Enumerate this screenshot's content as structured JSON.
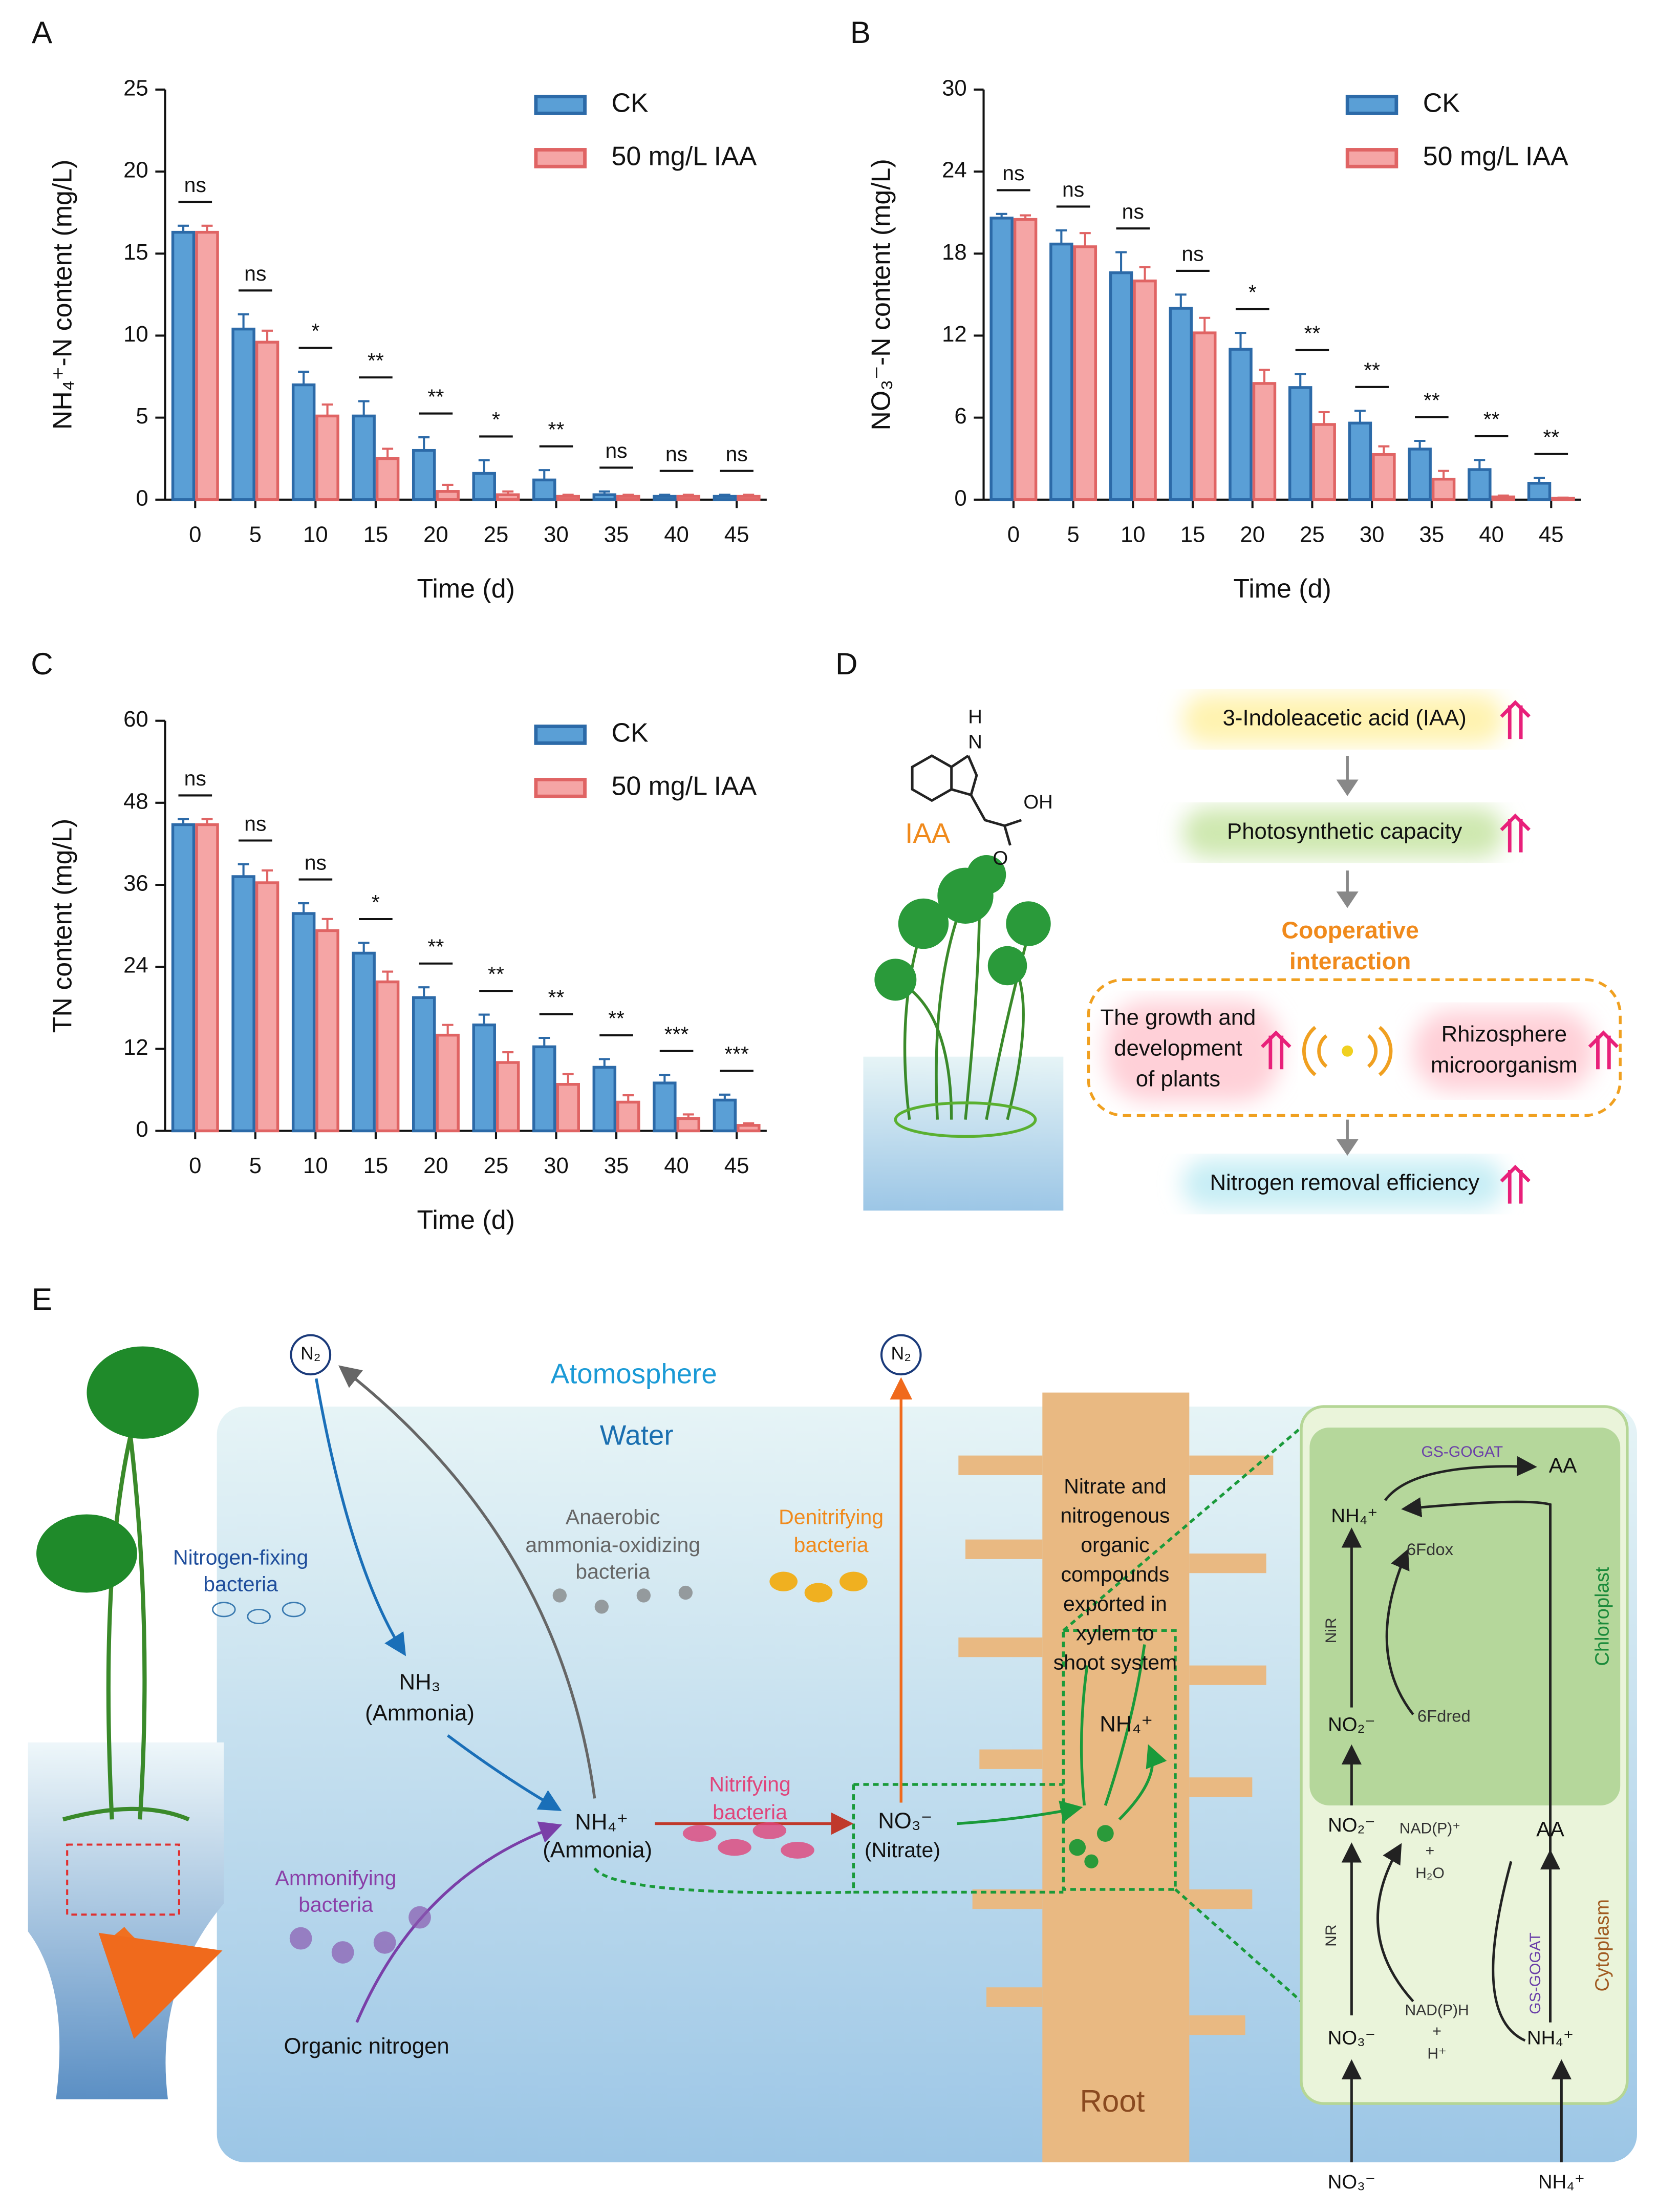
{
  "chart_data": [
    {
      "type": "bar",
      "label": "A",
      "ylabel": "NH₄⁺-N content (mg/L)",
      "xlabel": "Time (d)",
      "categories": [
        "0",
        "5",
        "10",
        "15",
        "20",
        "25",
        "30",
        "35",
        "40",
        "45"
      ],
      "series": [
        {
          "name": "CK",
          "color": "#5a9fd6",
          "edge": "#2c6aa8",
          "values": [
            16.3,
            10.4,
            7.0,
            5.1,
            3.0,
            1.6,
            1.2,
            0.3,
            0.2,
            0.2
          ],
          "errors": [
            0.4,
            0.9,
            0.8,
            0.9,
            0.8,
            0.8,
            0.6,
            0.2,
            0.1,
            0.1
          ]
        },
        {
          "name": "50 mg/L IAA",
          "color": "#f5a5a5",
          "edge": "#e06464",
          "values": [
            16.3,
            9.6,
            5.1,
            2.5,
            0.5,
            0.3,
            0.2,
            0.2,
            0.2,
            0.2
          ],
          "errors": [
            0.4,
            0.7,
            0.7,
            0.6,
            0.4,
            0.2,
            0.1,
            0.1,
            0.1,
            0.1
          ]
        }
      ],
      "significance": [
        "ns",
        "ns",
        "*",
        "**",
        "**",
        "*",
        "**",
        "ns",
        "ns",
        "ns"
      ],
      "ylim": [
        0,
        25
      ],
      "yticks": [
        0,
        5,
        10,
        15,
        20,
        25
      ]
    },
    {
      "type": "bar",
      "label": "B",
      "ylabel": "NO₃⁻-N content (mg/L)",
      "xlabel": "Time (d)",
      "categories": [
        "0",
        "5",
        "10",
        "15",
        "20",
        "25",
        "30",
        "35",
        "40",
        "45"
      ],
      "series": [
        {
          "name": "CK",
          "color": "#5a9fd6",
          "edge": "#2c6aa8",
          "values": [
            20.6,
            18.7,
            16.6,
            14.0,
            11.0,
            8.2,
            5.6,
            3.7,
            2.2,
            1.2
          ],
          "errors": [
            0.3,
            1.0,
            1.5,
            1.0,
            1.2,
            1.0,
            0.9,
            0.6,
            0.7,
            0.4
          ]
        },
        {
          "name": "50 mg/L IAA",
          "color": "#f5a5a5",
          "edge": "#e06464",
          "values": [
            20.5,
            18.5,
            16.0,
            12.2,
            8.5,
            5.5,
            3.3,
            1.5,
            0.2,
            0.1
          ],
          "errors": [
            0.3,
            1.0,
            1.0,
            1.1,
            1.0,
            0.9,
            0.6,
            0.6,
            0.1,
            0.05
          ]
        }
      ],
      "significance": [
        "ns",
        "ns",
        "ns",
        "ns",
        "*",
        "**",
        "**",
        "**",
        "**",
        "**"
      ],
      "ylim": [
        0,
        30
      ],
      "yticks": [
        0,
        6,
        12,
        18,
        24,
        30
      ]
    },
    {
      "type": "bar",
      "label": "C",
      "ylabel": "TN content (mg/L)",
      "xlabel": "Time (d)",
      "categories": [
        "0",
        "5",
        "10",
        "15",
        "20",
        "25",
        "30",
        "35",
        "40",
        "45"
      ],
      "series": [
        {
          "name": "CK",
          "color": "#5a9fd6",
          "edge": "#2c6aa8",
          "values": [
            44.8,
            37.2,
            31.8,
            26.0,
            19.5,
            15.5,
            12.3,
            9.3,
            7.0,
            4.5
          ],
          "errors": [
            0.8,
            1.8,
            1.5,
            1.5,
            1.5,
            1.5,
            1.3,
            1.2,
            1.2,
            0.8
          ]
        },
        {
          "name": "50 mg/L IAA",
          "color": "#f5a5a5",
          "edge": "#e06464",
          "values": [
            44.8,
            36.3,
            29.3,
            21.8,
            14.0,
            10.0,
            6.8,
            4.2,
            1.8,
            0.8
          ],
          "errors": [
            0.8,
            1.8,
            1.7,
            1.5,
            1.5,
            1.5,
            1.5,
            1.0,
            0.6,
            0.3
          ]
        }
      ],
      "significance": [
        "ns",
        "ns",
        "ns",
        "*",
        "**",
        "**",
        "**",
        "**",
        "***",
        "***"
      ],
      "ylim": [
        0,
        60
      ],
      "yticks": [
        0,
        12,
        24,
        36,
        48,
        60
      ]
    }
  ],
  "diagram_d": {
    "label": "D",
    "molecule_name": "IAA",
    "atoms": [
      "H",
      "N",
      "OH",
      "O"
    ],
    "steps": [
      "3-Indoleacetic acid (IAA)",
      "Photosynthetic capacity"
    ],
    "interaction_title": [
      "Cooperative",
      "interaction"
    ],
    "plants": [
      "The growth and",
      "development",
      "of plants"
    ],
    "microbes": [
      "Rhizosphere",
      "microorganism"
    ],
    "outcome": "Nitrogen removal efficiency"
  },
  "diagram_e": {
    "label": "E",
    "atmosphere": "Atomosphere",
    "water": "Water",
    "n2": [
      "N₂",
      "N₂"
    ],
    "nitrogen_fixing": [
      "Nitrogen-fixing",
      "bacteria"
    ],
    "anammox": [
      "Anaerobic",
      "ammonia-oxidizing",
      "bacteria"
    ],
    "denitrifying": [
      "Denitrifying",
      "bacteria"
    ],
    "nh3": [
      "NH₃",
      "(Ammonia)"
    ],
    "nh4": [
      "NH₄⁺",
      "(Ammonia)"
    ],
    "nitrifying": [
      "Nitrifying",
      "bacteria"
    ],
    "no3": [
      "NO₃⁻",
      "(Nitrate)"
    ],
    "ammonifying": [
      "Ammonifying",
      "bacteria"
    ],
    "organic": "Organic nitrogen",
    "xylem": [
      "Nitrate and",
      "nitrogenous",
      "organic",
      "compounds",
      "exported in",
      "xylem to",
      "shoot system"
    ],
    "root_nh4": "NH₄⁺",
    "root": "Root",
    "cell": {
      "gs_gogat_top": "GS-GOGAT",
      "aa_top": "AA",
      "nh4_top": "NH₄⁺",
      "fdox": "6Fdox",
      "nir": "NiR",
      "chloroplast": "Chloroplast",
      "no2_top": "NO₂⁻",
      "fdred": "6Fdred",
      "no2_mid": "NO₂⁻",
      "nadp_plus": [
        "NAD(P)⁺",
        "+",
        "H₂O"
      ],
      "aa_mid": "AA",
      "nr": "NR",
      "gs_gogat_mid": "GS-GOGAT",
      "cytoplasm": "Cytoplasm",
      "nadph": [
        "NAD(P)H",
        "+",
        "H⁺"
      ],
      "no3_mid": "NO₃⁻",
      "nh4_mid": "NH₄⁺",
      "no3_in": "NO₃⁻",
      "nh4_in": "NH₄⁺"
    }
  }
}
